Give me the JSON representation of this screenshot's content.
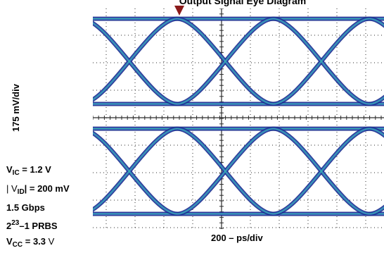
{
  "chart_data": {
    "type": "eye-diagram",
    "title": "Output Signal Eye Diagram",
    "x_scale": "200 – ps/div",
    "y_scale": "175 mV/div",
    "divisions": {
      "x": 10,
      "y": 8
    },
    "unit_interval_divisions": 3.33,
    "crossings_x_div": [
      1.8,
      5.13,
      8.46
    ],
    "channels": [
      {
        "name": "top",
        "high_level_div": 0.4,
        "low_level_div": 3.5
      },
      {
        "name": "bottom",
        "high_level_div": 4.4,
        "low_level_div": 7.5
      }
    ],
    "conditions": [
      {
        "main": "V",
        "sub": "IC",
        "rest": " = 1.2 V"
      },
      {
        "pre": "| V",
        "sub": "ID",
        "rest": "| = 200 mV"
      },
      {
        "main": "1.5 Gbps"
      },
      {
        "main": "2",
        "sup": "23",
        "rest": "–1 PRBS"
      },
      {
        "main": "V",
        "sub": "CC",
        "rest": " = 3.3 ",
        "thin": "V"
      }
    ]
  },
  "colors": {
    "trace": "#1a2d8c",
    "trace_mid": "#3d6fd0",
    "highlight": "#34c4a0",
    "grid": "#2b2b2b",
    "marker": "#8b1a1a"
  }
}
